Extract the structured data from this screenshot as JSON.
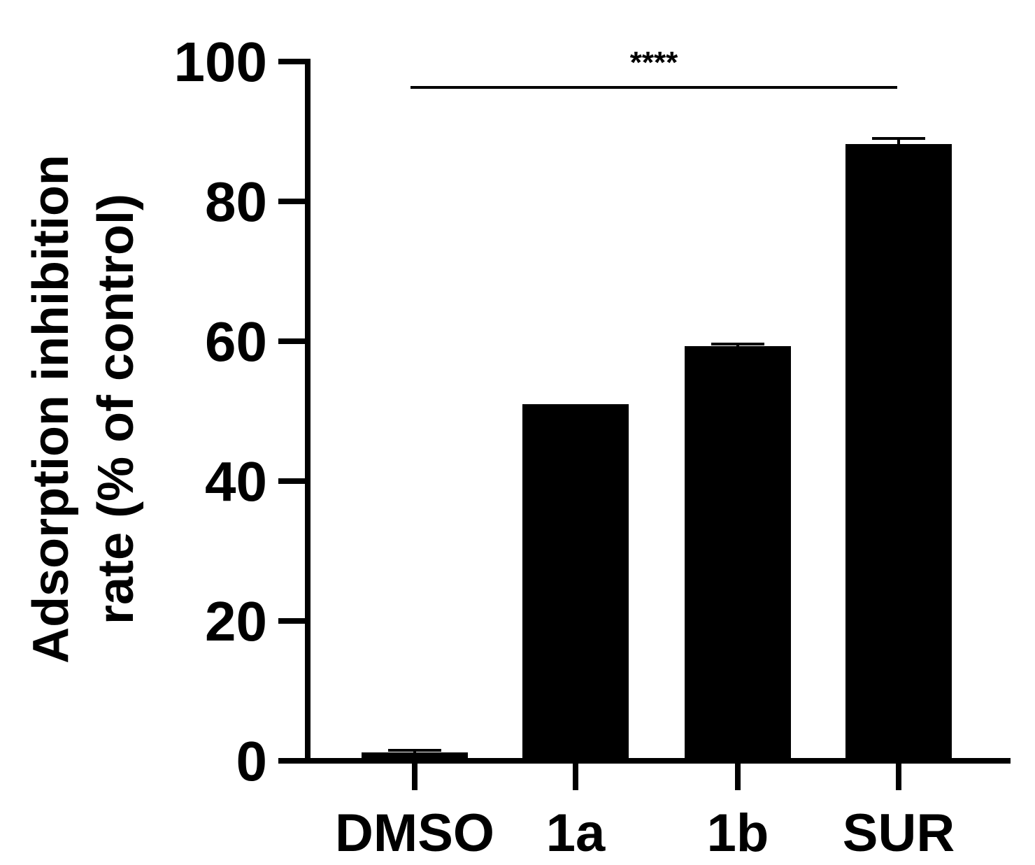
{
  "chart_data": {
    "type": "bar",
    "categories": [
      "DMSO",
      "1a",
      "1b",
      "SUR"
    ],
    "values": [
      1.2,
      51.0,
      59.3,
      88.2
    ],
    "errors": [
      0.3,
      0.0,
      0.3,
      0.8
    ],
    "ylabel_line1": "Adsorption inhibition",
    "ylabel_line2": "rate (% of control)",
    "ylim": [
      0,
      100
    ],
    "yticks": [
      0,
      20,
      40,
      60,
      80,
      100
    ],
    "bar_color": "#000000",
    "significance": {
      "label": "****",
      "from_category": "DMSO",
      "to_category": "SUR"
    }
  }
}
